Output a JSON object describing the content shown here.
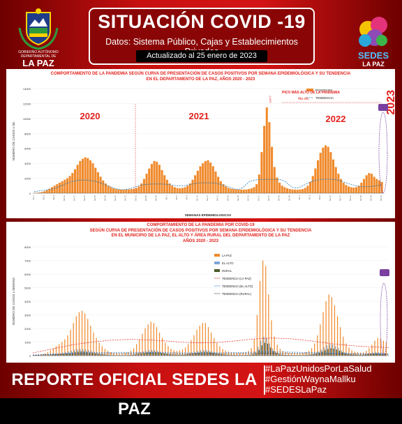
{
  "header": {
    "title": "SITUACIÓN COVID -19",
    "subtitle": "Datos: Sistema Público, Cajas y Establecimientos Privados",
    "updated": "Actualizado al 25 enero de 2023",
    "left_logo_text": [
      "GOBIERNO AUTÓNOMO",
      "DEPARTAMENTAL DE",
      "LA PAZ"
    ],
    "right_logo_text": [
      "SEDES",
      "LA PAZ"
    ]
  },
  "colors": {
    "background": "#c81010",
    "bar_orange": "#f08a2c",
    "el_alto_bar": "#7fa6d6",
    "rural_bar": "#4c5a2a",
    "trend": "#1f77b4",
    "title_red": "#e2211c"
  },
  "chart_data": [
    {
      "type": "bar",
      "title": "COMPORTAMIENTO DE LA PANDEMIA SEGÚN CURVA DE PRESENTACIÓN DE CASOS POSITIVOS POR SEMANA EPIDEMIOLÓGICA Y SU TENDENCIA",
      "subtitle": "EN EL DEPARTAMENTO DE LA PAZ, AÑOS 2020 - 2023",
      "xlabel": "SEMANAS EPIDEMIOLOGICAS",
      "ylabel": "NÚMERO DE CASOS x SE.",
      "ylim": [
        0,
        14000
      ],
      "yticks": [
        "0",
        "2000",
        "4000",
        "6000",
        "8000",
        "10000",
        "12000",
        "14000"
      ],
      "legend": [
        "POSITIVOS",
        "TENDENCIA"
      ],
      "legend_position": "top-right",
      "year_labels": [
        "2020",
        "2021",
        "2022",
        "2023"
      ],
      "annotations": [
        "PICO MÁS ALTO DE LA PANDEMIA",
        "4ta ola",
        "11477"
      ],
      "series": [
        {
          "name": "POSITIVOS",
          "values": [
            10,
            40,
            80,
            150,
            250,
            400,
            600,
            800,
            1000,
            1200,
            1400,
            1600,
            1800,
            2000,
            2300,
            2700,
            3200,
            3800,
            4300,
            4600,
            4800,
            4700,
            4400,
            4000,
            3400,
            2800,
            2200,
            1700,
            1300,
            1000,
            800,
            650,
            550,
            500,
            480,
            470,
            480,
            500,
            550,
            600,
            700,
            900,
            1300,
            1900,
            2600,
            3300,
            3900,
            4300,
            4200,
            3800,
            3100,
            2400,
            1800,
            1300,
            1000,
            800,
            700,
            650,
            700,
            800,
            1000,
            1300,
            1800,
            2400,
            3000,
            3600,
            4000,
            4300,
            4400,
            4100,
            3600,
            2900,
            2200,
            1600,
            1200,
            900,
            700,
            600,
            550,
            500,
            480,
            470,
            480,
            500,
            550,
            650,
            800,
            1200,
            2500,
            5500,
            9000,
            11477,
            9500,
            6200,
            3500,
            2100,
            1400,
            1000,
            800,
            650,
            550,
            500,
            480,
            470,
            500,
            550,
            700,
            1000,
            1500,
            2300,
            3300,
            4400,
            5400,
            6100,
            6400,
            6200,
            5500,
            4500,
            3500,
            2600,
            1900,
            1400,
            1100,
            900,
            800,
            750,
            800,
            1000,
            1400,
            1900,
            2400,
            2700,
            2600,
            2200,
            1900,
            1700,
            1500
          ]
        }
      ]
    },
    {
      "type": "bar",
      "title": "COMPORTAMIENTO DE LA PANDEMIA POR COVID-19",
      "subtitle": "SEGÚN CURVA DE PRESENTACIÓN DE CASOS POSITIVOS POR SEMANA EPIDEMIOLÓGICA Y SU TENDENCIA",
      "subtitle2": "EN EL MUNICIPIO DE LA PAZ, EL ALTO Y ÁREA RURAL DEL DEPARTAMENTO DE LA PAZ",
      "subtitle3": "AÑOS 2020 - 2023",
      "ylabel": "NÚMERO DE CASOS x SEMANA",
      "ylim": [
        0,
        8000
      ],
      "yticks": [
        "0",
        "1000",
        "2000",
        "3000",
        "4000",
        "5000",
        "6000",
        "7000",
        "8000"
      ],
      "legend": [
        "LA PAZ",
        "EL ALTO",
        "RURAL",
        "TENDENCIA (LA PAZ)",
        "TENDENCIA (EL ALTO)",
        "TENDENCIA (RURAL)"
      ],
      "legend_position": "top-right",
      "series": [
        {
          "name": "LA PAZ",
          "values": [
            5,
            20,
            40,
            80,
            150,
            250,
            400,
            550,
            700,
            850,
            1000,
            1200,
            1500,
            1900,
            2400,
            2900,
            3200,
            3300,
            3100,
            2700,
            2200,
            1700,
            1300,
            950,
            700,
            500,
            350,
            250,
            200,
            180,
            170,
            180,
            200,
            250,
            350,
            550,
            850,
            1200,
            1600,
            2000,
            2300,
            2500,
            2400,
            2100,
            1700,
            1300,
            950,
            700,
            500,
            400,
            350,
            380,
            450,
            600,
            850,
            1150,
            1500,
            1900,
            2200,
            2400,
            2400,
            2100,
            1700,
            1300,
            950,
            700,
            500,
            380,
            300,
            250,
            220,
            200,
            190,
            200,
            250,
            350,
            550,
            1200,
            3000,
            5500,
            7000,
            6600,
            4500,
            2600,
            1400,
            800,
            500,
            350,
            250,
            200,
            180,
            170,
            170,
            180,
            200,
            250,
            350,
            550,
            900,
            1500,
            2300,
            3200,
            4000,
            4500,
            4300,
            3700,
            2900,
            2100,
            1400,
            900,
            600,
            400,
            300,
            250,
            230,
            250,
            350,
            550,
            800,
            1100,
            1300,
            1250,
            1100,
            1000
          ]
        },
        {
          "name": "EL ALTO",
          "values": [
            0,
            5,
            10,
            20,
            40,
            70,
            100,
            130,
            160,
            190,
            220,
            260,
            310,
            370,
            430,
            480,
            500,
            490,
            450,
            400,
            340,
            280,
            220,
            170,
            130,
            100,
            80,
            60,
            50,
            45,
            45,
            50,
            60,
            75,
            100,
            140,
            190,
            250,
            310,
            360,
            400,
            420,
            400,
            360,
            300,
            240,
            180,
            140,
            110,
            90,
            80,
            85,
            100,
            130,
            170,
            220,
            280,
            340,
            390,
            420,
            410,
            370,
            310,
            250,
            190,
            140,
            100,
            80,
            70,
            60,
            55,
            50,
            50,
            55,
            65,
            90,
            140,
            280,
            650,
            1100,
            1400,
            1300,
            900,
            520,
            300,
            180,
            120,
            90,
            70,
            60,
            55,
            50,
            50,
            55,
            60,
            75,
            100,
            140,
            210,
            320,
            460,
            620,
            760,
            850,
            820,
            700,
            560,
            400,
            270,
            180,
            120,
            90,
            75,
            70,
            75,
            100,
            140,
            190,
            240,
            270,
            250,
            220,
            200
          ]
        },
        {
          "name": "RURAL",
          "values": [
            0,
            2,
            5,
            10,
            20,
            35,
            55,
            75,
            95,
            115,
            135,
            160,
            190,
            230,
            270,
            300,
            320,
            310,
            280,
            240,
            200,
            160,
            120,
            90,
            70,
            55,
            45,
            35,
            30,
            28,
            28,
            30,
            35,
            45,
            60,
            85,
            120,
            160,
            200,
            240,
            270,
            280,
            270,
            240,
            200,
            160,
            120,
            90,
            70,
            60,
            55,
            60,
            70,
            90,
            120,
            150,
            190,
            230,
            260,
            280,
            275,
            250,
            210,
            170,
            130,
            95,
            70,
            55,
            45,
            40,
            36,
            33,
            32,
            35,
            42,
            60,
            95,
            190,
            430,
            750,
            950,
            880,
            600,
            350,
            200,
            120,
            80,
            60,
            48,
            40,
            36,
            33,
            33,
            36,
            40,
            50,
            68,
            95,
            140,
            210,
            300,
            400,
            490,
            540,
            520,
            450,
            360,
            260,
            175,
            115,
            80,
            60,
            50,
            46,
            50,
            65,
            90,
            125,
            160,
            180,
            170,
            150,
            135
          ]
        }
      ],
      "trend_series": [
        {
          "name": "TENDENCIA (LA PAZ)",
          "values": [
            200,
            500,
            800,
            1000,
            1150,
            1200,
            1150,
            1050,
            950,
            950,
            1050,
            1200,
            1300,
            1250,
            1100,
            900,
            750,
            650,
            600
          ]
        },
        {
          "name": "TENDENCIA (EL ALTO)",
          "values": [
            50,
            120,
            180,
            220,
            240,
            245,
            235,
            220,
            205,
            205,
            220,
            250,
            270,
            260,
            230,
            195,
            165,
            145,
            135
          ]
        },
        {
          "name": "TENDENCIA (RURAL)",
          "values": [
            30,
            75,
            110,
            135,
            150,
            155,
            150,
            140,
            130,
            130,
            140,
            160,
            175,
            170,
            150,
            125,
            105,
            95,
            90
          ]
        }
      ]
    }
  ],
  "footer": {
    "report": "REPORTE OFICIAL SEDES LA PAZ",
    "hashtags": [
      "#LaPazUnidosPorLaSalud",
      "#GestiónWaynaMallku",
      "#SEDESLaPaz"
    ]
  }
}
